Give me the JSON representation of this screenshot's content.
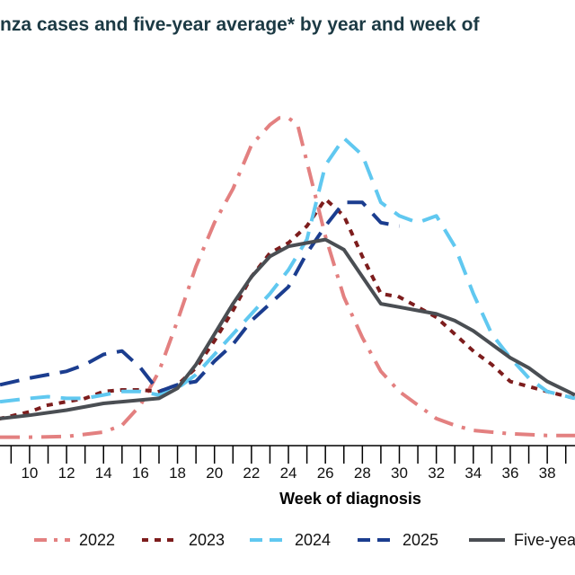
{
  "chart_data": {
    "type": "line",
    "title": "nza cases and five-year average* by year and week of",
    "xlabel": "Week of diagnosis",
    "ylabel": "",
    "x_ticks": [
      10,
      12,
      14,
      16,
      18,
      20,
      22,
      24,
      26,
      28,
      30,
      32,
      34,
      36,
      38
    ],
    "x_range": [
      8.4,
      39.5
    ],
    "y_range": [
      0,
      100
    ],
    "grid": false,
    "legend_position": "bottom",
    "series": [
      {
        "name": "2022",
        "color": "#e38080",
        "dash": "dashdot",
        "points": [
          [
            8.4,
            2.5
          ],
          [
            10,
            2.5
          ],
          [
            12,
            2.7
          ],
          [
            14,
            4
          ],
          [
            15,
            6
          ],
          [
            16,
            12
          ],
          [
            17,
            22
          ],
          [
            18,
            37
          ],
          [
            19,
            53
          ],
          [
            20,
            66
          ],
          [
            21,
            76
          ],
          [
            22,
            89
          ],
          [
            23,
            95
          ],
          [
            23.5,
            97
          ],
          [
            24,
            97
          ],
          [
            24.5,
            95
          ],
          [
            25,
            84
          ],
          [
            26,
            62
          ],
          [
            27,
            44
          ],
          [
            28,
            32
          ],
          [
            29,
            22
          ],
          [
            30,
            16
          ],
          [
            31,
            12
          ],
          [
            32,
            8
          ],
          [
            33,
            6
          ],
          [
            34,
            4.5
          ],
          [
            36,
            3.5
          ],
          [
            38,
            3
          ],
          [
            39.5,
            3
          ]
        ]
      },
      {
        "name": "2023",
        "color": "#7d1d1d",
        "dash": "dotted",
        "points": [
          [
            8.4,
            8
          ],
          [
            10,
            10
          ],
          [
            11,
            12
          ],
          [
            12,
            13
          ],
          [
            13,
            14
          ],
          [
            14,
            16
          ],
          [
            15,
            16.5
          ],
          [
            16,
            16.5
          ],
          [
            17,
            16
          ],
          [
            18,
            18
          ],
          [
            19,
            23
          ],
          [
            20,
            31
          ],
          [
            21,
            40
          ],
          [
            22,
            50
          ],
          [
            23,
            57
          ],
          [
            24,
            60
          ],
          [
            25,
            65
          ],
          [
            26,
            73
          ],
          [
            27,
            68
          ],
          [
            28,
            56
          ],
          [
            29,
            45
          ],
          [
            30,
            44
          ],
          [
            31,
            41
          ],
          [
            32,
            38
          ],
          [
            33,
            33
          ],
          [
            34,
            28
          ],
          [
            35,
            24
          ],
          [
            36,
            19
          ],
          [
            38,
            16
          ],
          [
            39.5,
            14
          ]
        ]
      },
      {
        "name": "2024",
        "color": "#60c8f0",
        "dash": "dashed",
        "points": [
          [
            8.4,
            13
          ],
          [
            10,
            14
          ],
          [
            11,
            14.5
          ],
          [
            12,
            14
          ],
          [
            13,
            14
          ],
          [
            14,
            15
          ],
          [
            15,
            16
          ],
          [
            16,
            16
          ],
          [
            17,
            15
          ],
          [
            18,
            17
          ],
          [
            19,
            21
          ],
          [
            20,
            27
          ],
          [
            21,
            33
          ],
          [
            22,
            39
          ],
          [
            23,
            45
          ],
          [
            24,
            52
          ],
          [
            25,
            61
          ],
          [
            26,
            83
          ],
          [
            27,
            91
          ],
          [
            28,
            86
          ],
          [
            29,
            72
          ],
          [
            30,
            68
          ],
          [
            31,
            66
          ],
          [
            32,
            68
          ],
          [
            33,
            59
          ],
          [
            34,
            45
          ],
          [
            35,
            33
          ],
          [
            36,
            26
          ],
          [
            37,
            20
          ],
          [
            38,
            16
          ],
          [
            39.5,
            14
          ]
        ]
      },
      {
        "name": "2025",
        "color": "#1b3d8f",
        "dash": "dashed",
        "points": [
          [
            8.4,
            18
          ],
          [
            10,
            20
          ],
          [
            11,
            21
          ],
          [
            12,
            22
          ],
          [
            13,
            24
          ],
          [
            14,
            27
          ],
          [
            15,
            28
          ],
          [
            16,
            23
          ],
          [
            17,
            16
          ],
          [
            18,
            18
          ],
          [
            19,
            19
          ],
          [
            20,
            25
          ],
          [
            21,
            30
          ],
          [
            22,
            37
          ],
          [
            23,
            42
          ],
          [
            24,
            47
          ],
          [
            25,
            57
          ],
          [
            26,
            65
          ],
          [
            27,
            72
          ],
          [
            28,
            72
          ],
          [
            29,
            66
          ],
          [
            30,
            65
          ]
        ]
      },
      {
        "name": "Five-year average*",
        "color": "#4a4e53",
        "dash": "solid",
        "points": [
          [
            8.4,
            8
          ],
          [
            10,
            9
          ],
          [
            12,
            10.5
          ],
          [
            14,
            12.5
          ],
          [
            15,
            13
          ],
          [
            16,
            13.5
          ],
          [
            17,
            14
          ],
          [
            18,
            17
          ],
          [
            19,
            24
          ],
          [
            20,
            33
          ],
          [
            21,
            42
          ],
          [
            22,
            50
          ],
          [
            23,
            56
          ],
          [
            24,
            59
          ],
          [
            25,
            60
          ],
          [
            26,
            61
          ],
          [
            27,
            58
          ],
          [
            28,
            50
          ],
          [
            29,
            42
          ],
          [
            30,
            41
          ],
          [
            31,
            40
          ],
          [
            32,
            39
          ],
          [
            33,
            37
          ],
          [
            34,
            34
          ],
          [
            35,
            30
          ],
          [
            36,
            26
          ],
          [
            37,
            23
          ],
          [
            38,
            19
          ],
          [
            39.5,
            15
          ]
        ]
      }
    ]
  }
}
